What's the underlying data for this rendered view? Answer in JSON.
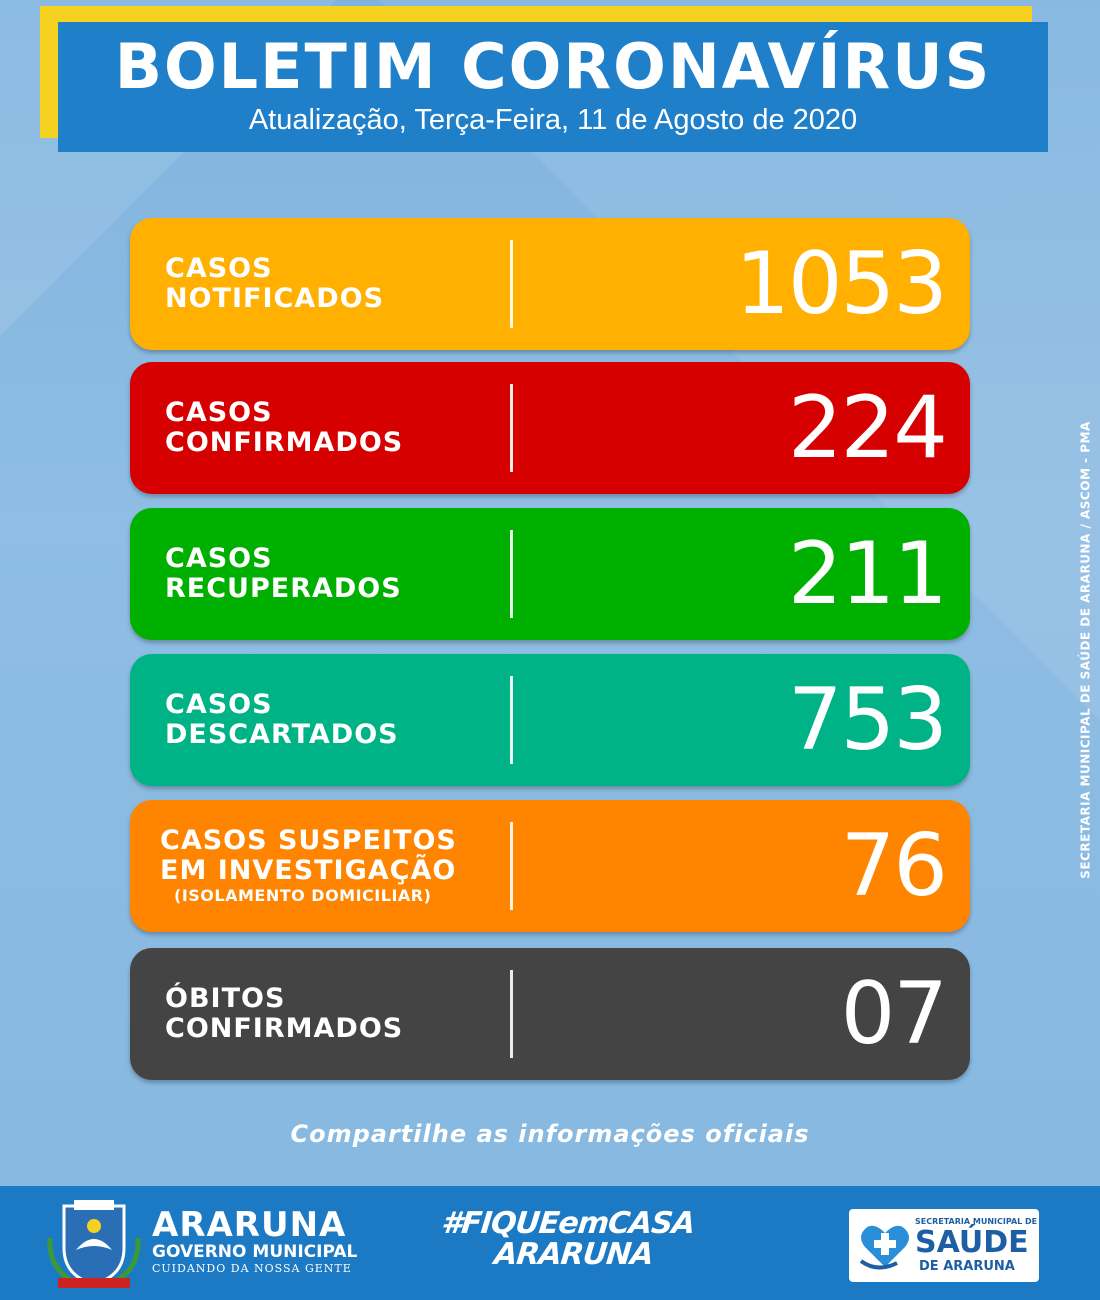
{
  "header": {
    "title": "BOLETIM CORONAVÍRUS",
    "subtitle": "Atualização, Terça-Feira, 11 de Agosto de 2020"
  },
  "cards": [
    {
      "label_lines": [
        "CASOS",
        "NOTIFICADOS"
      ],
      "value": "1053",
      "color": "#ffb000"
    },
    {
      "label_lines": [
        "CASOS",
        "CONFIRMADOS"
      ],
      "value": "224",
      "color": "#d60000"
    },
    {
      "label_lines": [
        "CASOS",
        "RECUPERADOS"
      ],
      "value": "211",
      "color": "#00b000"
    },
    {
      "label_lines": [
        "CASOS",
        "DESCARTADOS"
      ],
      "value": "753",
      "color": "#00b386"
    },
    {
      "label_lines": [
        "CASOS SUSPEITOS",
        "EM INVESTIGAÇÃO"
      ],
      "note": "(ISOLAMENTO DOMICILIAR)",
      "value": "76",
      "color": "#ff8400"
    },
    {
      "label_lines": [
        "ÓBITOS",
        "CONFIRMADOS"
      ],
      "value": "07",
      "color": "#444444"
    }
  ],
  "share_text": "Compartilhe as informações oficiais",
  "vertical_credit": "SECRETARIA MUNICIPAL DE SAÚDE DE ARARUNA / ASCOM - PMA",
  "footer": {
    "municipality": {
      "name": "ARARUNA",
      "government": "GOVERNO MUNICIPAL",
      "slogan": "CUIDANDO DA NOSSA GENTE",
      "icon": "crest-icon"
    },
    "hashtag": {
      "line1": "#FIQUEemCASA",
      "line2": "ARARUNA"
    },
    "health_logo": {
      "small": "SECRETARIA MUNICIPAL DE",
      "big": "SAÚDE",
      "sub": "DE ARARUNA",
      "icon": "heart-hands-icon"
    }
  }
}
